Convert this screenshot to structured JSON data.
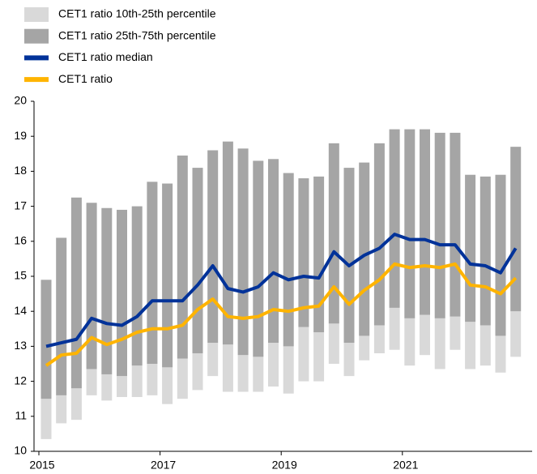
{
  "chart_data": {
    "type": "range-bar-line",
    "categories": [
      "2015",
      null,
      null,
      null,
      null,
      null,
      null,
      null,
      "2017",
      null,
      null,
      null,
      null,
      null,
      null,
      null,
      "2019",
      null,
      null,
      null,
      null,
      null,
      null,
      null,
      "2021",
      null,
      null,
      null,
      null,
      null,
      null,
      null
    ],
    "ranges": [
      {
        "name": "CET1 ratio 10th-25th percentile",
        "color": "#d9d9d9",
        "low": [
          10.35,
          10.8,
          10.9,
          11.6,
          11.45,
          11.55,
          11.55,
          11.6,
          11.35,
          11.5,
          11.75,
          12.15,
          11.7,
          11.7,
          11.7,
          11.85,
          11.65,
          12.0,
          12.0,
          12.5,
          12.15,
          12.6,
          12.8,
          12.9,
          12.45,
          12.75,
          12.35,
          12.9,
          12.35,
          12.45,
          12.25,
          12.7
        ],
        "high": [
          11.5,
          11.6,
          11.8,
          12.35,
          12.2,
          12.15,
          12.45,
          12.5,
          12.4,
          12.65,
          12.8,
          13.1,
          13.05,
          12.75,
          12.7,
          13.1,
          13.0,
          13.55,
          13.4,
          13.65,
          13.1,
          13.3,
          13.6,
          14.1,
          13.8,
          13.9,
          13.8,
          13.85,
          13.7,
          13.6,
          13.3,
          14.0
        ]
      },
      {
        "name": "CET1 ratio 25th-75th percentile",
        "color": "#a5a5a5",
        "low": [
          11.5,
          11.6,
          11.8,
          12.35,
          12.2,
          12.15,
          12.45,
          12.5,
          12.4,
          12.65,
          12.8,
          13.1,
          13.05,
          12.75,
          12.7,
          13.1,
          13.0,
          13.55,
          13.4,
          13.65,
          13.1,
          13.3,
          13.6,
          14.1,
          13.8,
          13.9,
          13.8,
          13.85,
          13.7,
          13.6,
          13.3,
          14.0
        ],
        "high": [
          14.9,
          16.1,
          17.25,
          17.1,
          16.95,
          16.9,
          17.0,
          17.7,
          17.65,
          18.45,
          18.1,
          18.6,
          18.85,
          18.65,
          18.3,
          18.35,
          17.95,
          17.8,
          17.85,
          18.8,
          18.1,
          18.25,
          18.8,
          19.2,
          19.2,
          19.2,
          19.1,
          19.1,
          17.9,
          17.85,
          17.9,
          18.7
        ]
      }
    ],
    "series": [
      {
        "name": "CET1 ratio median",
        "color": "#003299",
        "values": [
          13.0,
          13.1,
          13.2,
          13.8,
          13.65,
          13.6,
          13.85,
          14.3,
          14.3,
          14.3,
          14.75,
          15.3,
          14.65,
          14.55,
          14.7,
          15.1,
          14.9,
          15.0,
          14.95,
          15.7,
          15.3,
          15.6,
          15.8,
          16.2,
          16.05,
          16.05,
          15.9,
          15.9,
          15.35,
          15.3,
          15.1,
          15.8
        ]
      },
      {
        "name": "CET1 ratio",
        "color": "#ffb400",
        "values": [
          12.45,
          12.75,
          12.8,
          13.25,
          13.05,
          13.2,
          13.4,
          13.5,
          13.5,
          13.6,
          14.05,
          14.35,
          13.85,
          13.8,
          13.85,
          14.05,
          14.0,
          14.1,
          14.15,
          14.7,
          14.2,
          14.6,
          14.9,
          15.35,
          15.25,
          15.3,
          15.25,
          15.35,
          14.75,
          14.7,
          14.5,
          14.95
        ]
      }
    ],
    "ylim": [
      10,
      20
    ],
    "yticks": [
      10,
      11,
      12,
      13,
      14,
      15,
      16,
      17,
      18,
      19,
      20
    ],
    "grid": false
  }
}
